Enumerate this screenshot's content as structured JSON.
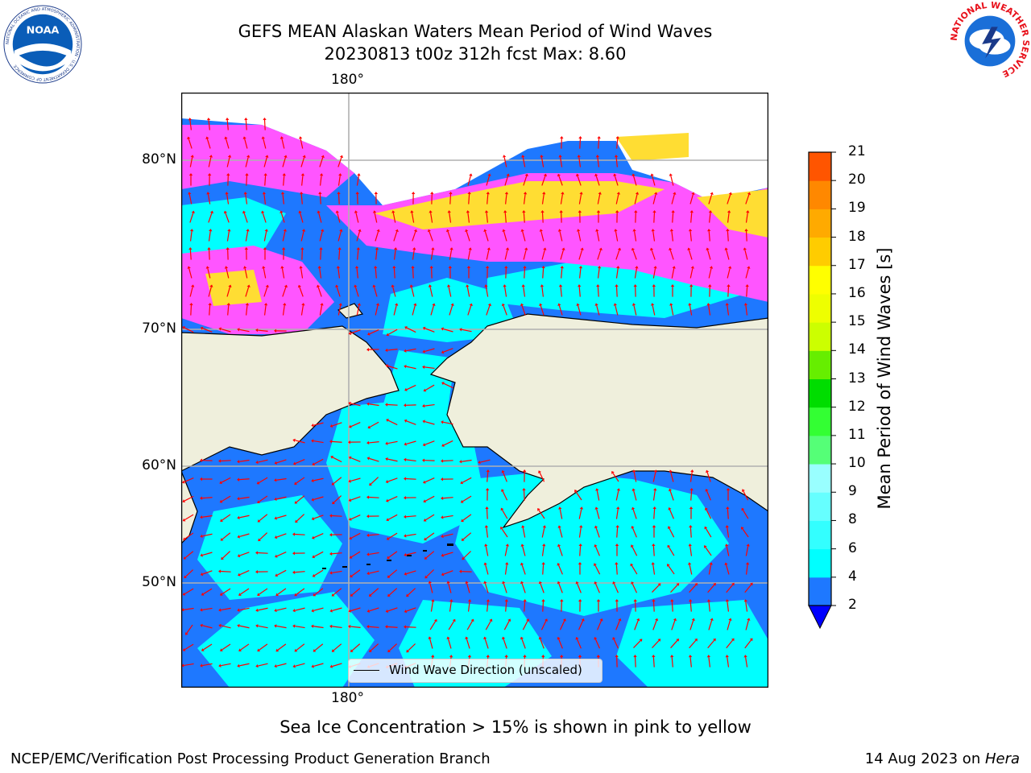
{
  "title_line1": "GEFS MEAN Alaskan Waters Mean Period of Wind Waves",
  "title_line2": "20230813 t00z 312h fcst   Max: 8.60",
  "map": {
    "lat_labels": [
      {
        "label": "80°N",
        "lat": 80
      },
      {
        "label": "70°N",
        "lat": 70
      },
      {
        "label": "60°N",
        "lat": 60
      },
      {
        "label": "50°N",
        "lat": 50
      }
    ],
    "lon_label_top": "180°",
    "lon_label_bottom": "180°",
    "legend": "Wind Wave Direction (unscaled)"
  },
  "colorbar": {
    "title": "Mean Period of Wind Waves [s]",
    "ticks": [
      "2",
      "4",
      "6",
      "8",
      "9",
      "10",
      "11",
      "12",
      "13",
      "14",
      "15",
      "16",
      "17",
      "18",
      "19",
      "20",
      "21"
    ],
    "colors": [
      "#1e78ff",
      "#00ffff",
      "#33ffff",
      "#66ffff",
      "#99ffff",
      "#55ff77",
      "#33ff33",
      "#00dd00",
      "#66ee00",
      "#ccff00",
      "#eeff00",
      "#ffff00",
      "#ffcc00",
      "#ffaa00",
      "#ff8800",
      "#ff5500",
      "#ff2200",
      "#ff0000"
    ],
    "under_color": "#0000ff"
  },
  "palette": {
    "land": "#efefdc",
    "ocean_dark": "#1e78ff",
    "ocean_cyan": "#00ffff",
    "ice_pink": "#ff55ff",
    "ice_yellow": "#ffdd33",
    "arrow": "#ff0000"
  },
  "subtitle": "Sea Ice Concentration > 15% is shown in pink to yellow",
  "footer_left": "NCEP/EMC/Verification Post Processing Product Generation Branch",
  "footer_date": "14 Aug 2023 on ",
  "footer_host": "Hera",
  "logos": {
    "noaa_text": "NOAA",
    "noaa_ring": "NATIONAL OCEANIC AND ATMOSPHERIC ADMINISTRATION · U.S. DEPARTMENT OF COMMERCE",
    "nws_ring": "NATIONAL WEATHER SERVICE"
  }
}
